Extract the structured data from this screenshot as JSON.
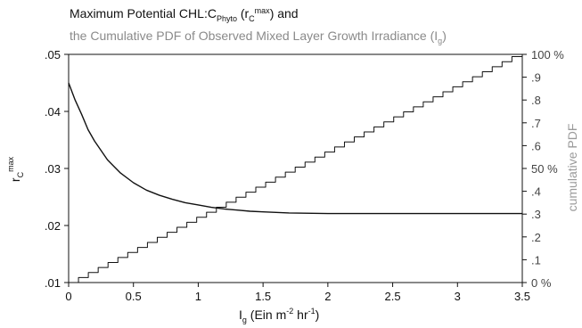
{
  "chart_data": {
    "type": "line",
    "title_line1": {
      "main": "Maximum Potential CHL:C",
      "sub1": "Phyto",
      "mid": " (r",
      "sub2": "C",
      "sup": "max",
      "end": ") and"
    },
    "title_line2": {
      "main": "the Cumulative PDF of Observed Mixed Layer Growth Irradiance (I",
      "sub": "g",
      "end": ")"
    },
    "xlabel": {
      "main": "I",
      "sub": "g",
      "rest1": " (Ein m",
      "sup1": "-2",
      "rest2": " hr",
      "sup2": "-1",
      "rest3": ")"
    },
    "ylabel": {
      "main": "r",
      "sub": "C",
      "sup": "max"
    },
    "y2label": "cumulative PDF",
    "xlim": [
      0,
      3.5
    ],
    "ylim": [
      0.01,
      0.05
    ],
    "y2lim": [
      0,
      1
    ],
    "x_ticks": [
      {
        "v": 0,
        "label": "0"
      },
      {
        "v": 0.5,
        "label": "0.5"
      },
      {
        "v": 1,
        "label": "1"
      },
      {
        "v": 1.5,
        "label": "1.5"
      },
      {
        "v": 2,
        "label": "2"
      },
      {
        "v": 2.5,
        "label": "2.5"
      },
      {
        "v": 3,
        "label": "3"
      },
      {
        "v": 3.5,
        "label": "3.5"
      }
    ],
    "y_ticks": [
      {
        "v": 0.01,
        "label": ".01"
      },
      {
        "v": 0.02,
        "label": ".02"
      },
      {
        "v": 0.03,
        "label": ".03"
      },
      {
        "v": 0.04,
        "label": ".04"
      },
      {
        "v": 0.05,
        "label": ".05"
      }
    ],
    "y2_ticks": [
      {
        "v": 0.0,
        "label": "0  %"
      },
      {
        "v": 0.1,
        "label": ".1"
      },
      {
        "v": 0.2,
        "label": ".2"
      },
      {
        "v": 0.3,
        "label": ".3"
      },
      {
        "v": 0.4,
        "label": ".4"
      },
      {
        "v": 0.5,
        "label": "50  %"
      },
      {
        "v": 0.6,
        "label": ".6"
      },
      {
        "v": 0.7,
        "label": ".7"
      },
      {
        "v": 0.8,
        "label": ".8"
      },
      {
        "v": 0.9,
        "label": ".9"
      },
      {
        "v": 1.0,
        "label": "100  %"
      }
    ],
    "series": [
      {
        "axis": "left",
        "style": "smooth",
        "x": [
          0,
          0.05,
          0.1,
          0.15,
          0.2,
          0.3,
          0.4,
          0.5,
          0.6,
          0.7,
          0.8,
          0.9,
          1.0,
          1.1,
          1.2,
          1.3,
          1.4,
          1.5,
          1.7,
          2.0,
          2.5,
          3.0,
          3.5
        ],
        "y": [
          0.045,
          0.042,
          0.0395,
          0.0368,
          0.0348,
          0.0315,
          0.0292,
          0.0275,
          0.0262,
          0.0253,
          0.0246,
          0.024,
          0.0236,
          0.0232,
          0.0229,
          0.0227,
          0.0225,
          0.0224,
          0.0222,
          0.0221,
          0.0221,
          0.0221,
          0.0221
        ]
      },
      {
        "axis": "right",
        "style": "step",
        "x": [
          0,
          0.076,
          0.152,
          0.228,
          0.304,
          0.38,
          0.456,
          0.532,
          0.608,
          0.684,
          0.76,
          0.836,
          0.912,
          0.988,
          1.064,
          1.14,
          1.216,
          1.292,
          1.368,
          1.444,
          1.52,
          1.596,
          1.672,
          1.748,
          1.824,
          1.9,
          1.976,
          2.052,
          2.128,
          2.204,
          2.28,
          2.356,
          2.432,
          2.508,
          2.584,
          2.66,
          2.736,
          2.812,
          2.888,
          2.964,
          3.04,
          3.116,
          3.192,
          3.268,
          3.344,
          3.42,
          3.5
        ],
        "y": [
          0.0,
          0.022,
          0.044,
          0.066,
          0.088,
          0.11,
          0.132,
          0.154,
          0.176,
          0.198,
          0.22,
          0.242,
          0.264,
          0.286,
          0.308,
          0.33,
          0.352,
          0.374,
          0.396,
          0.418,
          0.44,
          0.462,
          0.484,
          0.506,
          0.528,
          0.55,
          0.572,
          0.594,
          0.616,
          0.638,
          0.66,
          0.682,
          0.704,
          0.726,
          0.748,
          0.77,
          0.792,
          0.814,
          0.836,
          0.858,
          0.88,
          0.902,
          0.924,
          0.946,
          0.968,
          0.99,
          1.0
        ]
      }
    ]
  }
}
